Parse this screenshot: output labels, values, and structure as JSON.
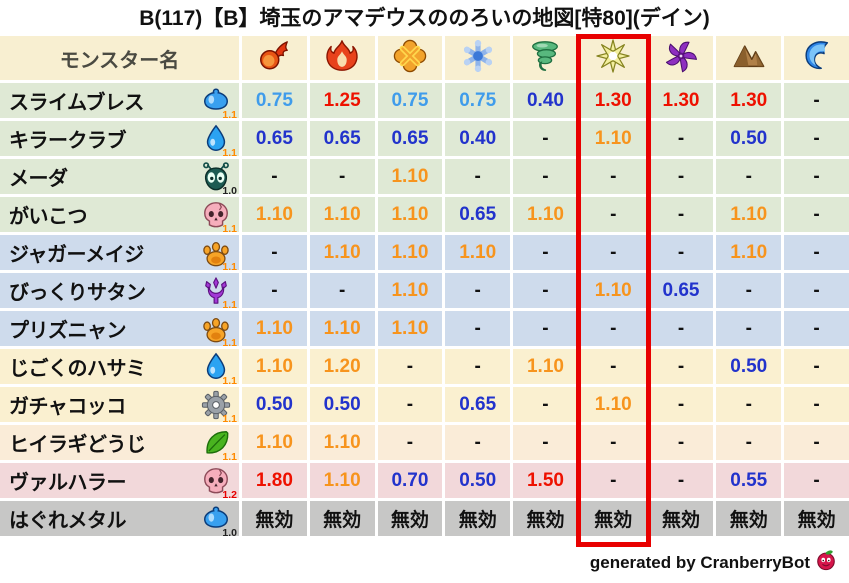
{
  "title": "B(117)【B】埼玉のアマデウスののろいの地図[特80](デイン)",
  "footer": {
    "text": "generated by CranberryBot",
    "icon": "cranberry-icon"
  },
  "colors": {
    "accent_red_box": "#e80000",
    "value_red": "#ee1100",
    "value_orange": "#f7941d",
    "value_blue": "#2233cc",
    "value_lightblue": "#3f9ceb",
    "header_bg": "#f8efd1",
    "row_green": "#dfe9d5",
    "row_blue": "#cedbec",
    "row_cream": "#faf0d0",
    "row_peach": "#faecd8",
    "row_pink": "#f2d8da",
    "row_gray": "#c7c7c6"
  },
  "chart_data": {
    "type": "table",
    "title": "B(117)【B】埼玉のアマデウスののろいの地図[特80](デイン)",
    "name_column_label": "モンスター名",
    "highlighted_column_index": 6,
    "element_columns": [
      {
        "icon": "fireball-icon",
        "highlighted": false
      },
      {
        "icon": "flame-icon",
        "highlighted": false
      },
      {
        "icon": "explosion-icon",
        "highlighted": false
      },
      {
        "icon": "snowflake-icon",
        "highlighted": false
      },
      {
        "icon": "tornado-icon",
        "highlighted": false
      },
      {
        "icon": "light-burst-icon",
        "highlighted": true
      },
      {
        "icon": "pinwheel-icon",
        "highlighted": false
      },
      {
        "icon": "mountain-icon",
        "highlighted": false
      },
      {
        "icon": "wave-icon",
        "highlighted": false
      }
    ],
    "rows": [
      {
        "name": "スライムブレス",
        "icon": "slime-icon",
        "rate": "1.1",
        "rate_color": "#ff8a00",
        "bg": "#dfe9d5",
        "cells": [
          {
            "v": "0.75",
            "c": "lightblue"
          },
          {
            "v": "1.25",
            "c": "red"
          },
          {
            "v": "0.75",
            "c": "lightblue"
          },
          {
            "v": "0.75",
            "c": "lightblue"
          },
          {
            "v": "0.40",
            "c": "blue"
          },
          {
            "v": "1.30",
            "c": "red"
          },
          {
            "v": "1.30",
            "c": "red"
          },
          {
            "v": "1.30",
            "c": "red"
          },
          {
            "v": "-",
            "c": "dash"
          }
        ]
      },
      {
        "name": "キラークラブ",
        "icon": "waterdrop-icon",
        "rate": "1.1",
        "rate_color": "#ff8a00",
        "bg": "#dfe9d5",
        "cells": [
          {
            "v": "0.65",
            "c": "blue"
          },
          {
            "v": "0.65",
            "c": "blue"
          },
          {
            "v": "0.65",
            "c": "blue"
          },
          {
            "v": "0.40",
            "c": "blue"
          },
          {
            "v": "-",
            "c": "dash"
          },
          {
            "v": "1.10",
            "c": "orange"
          },
          {
            "v": "-",
            "c": "dash"
          },
          {
            "v": "0.50",
            "c": "blue"
          },
          {
            "v": "-",
            "c": "dash"
          }
        ]
      },
      {
        "name": "メーダ",
        "icon": "bug-icon",
        "rate": "1.0",
        "rate_color": "#222222",
        "bg": "#dfe9d5",
        "cells": [
          {
            "v": "-",
            "c": "dash"
          },
          {
            "v": "-",
            "c": "dash"
          },
          {
            "v": "1.10",
            "c": "orange"
          },
          {
            "v": "-",
            "c": "dash"
          },
          {
            "v": "-",
            "c": "dash"
          },
          {
            "v": "-",
            "c": "dash"
          },
          {
            "v": "-",
            "c": "dash"
          },
          {
            "v": "-",
            "c": "dash"
          },
          {
            "v": "-",
            "c": "dash"
          }
        ]
      },
      {
        "name": "がいこつ",
        "icon": "skull-icon",
        "rate": "1.1",
        "rate_color": "#ff8a00",
        "bg": "#dfe9d5",
        "cells": [
          {
            "v": "1.10",
            "c": "orange"
          },
          {
            "v": "1.10",
            "c": "orange"
          },
          {
            "v": "1.10",
            "c": "orange"
          },
          {
            "v": "0.65",
            "c": "blue"
          },
          {
            "v": "1.10",
            "c": "orange"
          },
          {
            "v": "-",
            "c": "dash"
          },
          {
            "v": "-",
            "c": "dash"
          },
          {
            "v": "1.10",
            "c": "orange"
          },
          {
            "v": "-",
            "c": "dash"
          }
        ]
      },
      {
        "name": "ジャガーメイジ",
        "icon": "paw-icon",
        "rate": "1.1",
        "rate_color": "#ff8a00",
        "bg": "#cedbec",
        "cells": [
          {
            "v": "-",
            "c": "dash"
          },
          {
            "v": "1.10",
            "c": "orange"
          },
          {
            "v": "1.10",
            "c": "orange"
          },
          {
            "v": "1.10",
            "c": "orange"
          },
          {
            "v": "-",
            "c": "dash"
          },
          {
            "v": "-",
            "c": "dash"
          },
          {
            "v": "-",
            "c": "dash"
          },
          {
            "v": "1.10",
            "c": "orange"
          },
          {
            "v": "-",
            "c": "dash"
          }
        ]
      },
      {
        "name": "びっくりサタン",
        "icon": "demon-trident-icon",
        "rate": "1.1",
        "rate_color": "#ff8a00",
        "bg": "#cedbec",
        "cells": [
          {
            "v": "-",
            "c": "dash"
          },
          {
            "v": "-",
            "c": "dash"
          },
          {
            "v": "1.10",
            "c": "orange"
          },
          {
            "v": "-",
            "c": "dash"
          },
          {
            "v": "-",
            "c": "dash"
          },
          {
            "v": "1.10",
            "c": "orange"
          },
          {
            "v": "0.65",
            "c": "blue"
          },
          {
            "v": "-",
            "c": "dash"
          },
          {
            "v": "-",
            "c": "dash"
          }
        ]
      },
      {
        "name": "プリズニャン",
        "icon": "paw-icon",
        "rate": "1.1",
        "rate_color": "#ff8a00",
        "bg": "#cedbec",
        "cells": [
          {
            "v": "1.10",
            "c": "orange"
          },
          {
            "v": "1.10",
            "c": "orange"
          },
          {
            "v": "1.10",
            "c": "orange"
          },
          {
            "v": "-",
            "c": "dash"
          },
          {
            "v": "-",
            "c": "dash"
          },
          {
            "v": "-",
            "c": "dash"
          },
          {
            "v": "-",
            "c": "dash"
          },
          {
            "v": "-",
            "c": "dash"
          },
          {
            "v": "-",
            "c": "dash"
          }
        ]
      },
      {
        "name": "じごくのハサミ",
        "icon": "waterdrop-icon",
        "rate": "1.1",
        "rate_color": "#ff8a00",
        "bg": "#faf0d0",
        "cells": [
          {
            "v": "1.10",
            "c": "orange"
          },
          {
            "v": "1.20",
            "c": "orange"
          },
          {
            "v": "-",
            "c": "dash"
          },
          {
            "v": "-",
            "c": "dash"
          },
          {
            "v": "1.10",
            "c": "orange"
          },
          {
            "v": "-",
            "c": "dash"
          },
          {
            "v": "-",
            "c": "dash"
          },
          {
            "v": "0.50",
            "c": "blue"
          },
          {
            "v": "-",
            "c": "dash"
          }
        ]
      },
      {
        "name": "ガチャコッコ",
        "icon": "gear-icon",
        "rate": "1.1",
        "rate_color": "#ff8a00",
        "bg": "#faf0d0",
        "cells": [
          {
            "v": "0.50",
            "c": "blue"
          },
          {
            "v": "0.50",
            "c": "blue"
          },
          {
            "v": "-",
            "c": "dash"
          },
          {
            "v": "0.65",
            "c": "blue"
          },
          {
            "v": "-",
            "c": "dash"
          },
          {
            "v": "1.10",
            "c": "orange"
          },
          {
            "v": "-",
            "c": "dash"
          },
          {
            "v": "-",
            "c": "dash"
          },
          {
            "v": "-",
            "c": "dash"
          }
        ]
      },
      {
        "name": "ヒイラギどうじ",
        "icon": "leaf-icon",
        "rate": "1.1",
        "rate_color": "#ff8a00",
        "bg": "#faecd8",
        "cells": [
          {
            "v": "1.10",
            "c": "orange"
          },
          {
            "v": "1.10",
            "c": "orange"
          },
          {
            "v": "-",
            "c": "dash"
          },
          {
            "v": "-",
            "c": "dash"
          },
          {
            "v": "-",
            "c": "dash"
          },
          {
            "v": "-",
            "c": "dash"
          },
          {
            "v": "-",
            "c": "dash"
          },
          {
            "v": "-",
            "c": "dash"
          },
          {
            "v": "-",
            "c": "dash"
          }
        ]
      },
      {
        "name": "ヴァルハラー",
        "icon": "skull-icon",
        "rate": "1.2",
        "rate_color": "#e60000",
        "bg": "#f2d8da",
        "cells": [
          {
            "v": "1.80",
            "c": "red"
          },
          {
            "v": "1.10",
            "c": "orange"
          },
          {
            "v": "0.70",
            "c": "blue"
          },
          {
            "v": "0.50",
            "c": "blue"
          },
          {
            "v": "1.50",
            "c": "red"
          },
          {
            "v": "-",
            "c": "dash"
          },
          {
            "v": "-",
            "c": "dash"
          },
          {
            "v": "0.55",
            "c": "blue"
          },
          {
            "v": "-",
            "c": "dash"
          }
        ]
      },
      {
        "name": "はぐれメタル",
        "icon": "slime-icon",
        "rate": "1.0",
        "rate_color": "#222222",
        "bg": "#c7c7c6",
        "cells": [
          {
            "v": "無効",
            "c": "immune"
          },
          {
            "v": "無効",
            "c": "immune"
          },
          {
            "v": "無効",
            "c": "immune"
          },
          {
            "v": "無効",
            "c": "immune"
          },
          {
            "v": "無効",
            "c": "immune"
          },
          {
            "v": "無効",
            "c": "immune"
          },
          {
            "v": "無効",
            "c": "immune"
          },
          {
            "v": "無効",
            "c": "immune"
          },
          {
            "v": "無効",
            "c": "immune"
          }
        ]
      }
    ]
  }
}
